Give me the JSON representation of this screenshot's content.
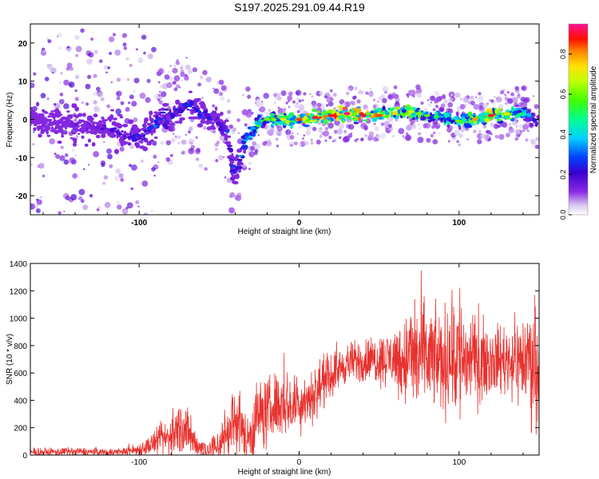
{
  "title": "S197.2025.291.09.44.R19",
  "colors": {
    "snr_line": "#e8322e",
    "axis": "#000000",
    "background": "#ffffff"
  },
  "chart_data": [
    {
      "type": "heatmap",
      "title": "S197.2025.291.09.44.R19",
      "xlabel": "Height of straight line (km)",
      "ylabel": "Frequency (Hz)",
      "xlim": [
        -168,
        150
      ],
      "ylim": [
        -25,
        25
      ],
      "xticks": [
        -100,
        0,
        100
      ],
      "yticks": [
        -20,
        -10,
        0,
        10,
        20
      ],
      "colorbar": {
        "label": "Normalized spectral amplitude",
        "range": [
          0,
          0.95
        ],
        "ticks": [
          0.0,
          0.2,
          0.4,
          0.6,
          0.8
        ]
      },
      "ridge": {
        "x": [
          -168,
          -150,
          -130,
          -115,
          -100,
          -85,
          -75,
          -68,
          -60,
          -52,
          -45,
          -41,
          -38,
          -35,
          -30,
          -25,
          -20,
          -10,
          0,
          10,
          20,
          30,
          40,
          50,
          60,
          70,
          80,
          90,
          100,
          110,
          120,
          130,
          140,
          148
        ],
        "y": [
          0,
          -1,
          -2,
          -3,
          -5,
          0,
          2,
          4,
          1,
          0,
          -3,
          -14,
          -12,
          -6,
          -4,
          -1,
          0,
          0,
          0,
          0.5,
          1,
          1.5,
          1,
          1,
          1.5,
          2,
          1,
          0.5,
          -0.5,
          0,
          1,
          1.5,
          2,
          -1
        ],
        "peak_amplitude": [
          0.1,
          0.15,
          0.2,
          0.25,
          0.3,
          0.35,
          0.35,
          0.3,
          0.3,
          0.25,
          0.3,
          0.35,
          0.35,
          0.45,
          0.5,
          0.55,
          0.6,
          0.7,
          0.85,
          0.9,
          0.9,
          0.95,
          0.9,
          0.85,
          0.75,
          0.7,
          0.6,
          0.55,
          0.6,
          0.8,
          0.9,
          0.7,
          0.5,
          0.3
        ]
      }
    },
    {
      "type": "line",
      "xlabel": "Height of straight line (km)",
      "ylabel": "SNR (10 * v/v)",
      "xlim": [
        -168,
        150
      ],
      "ylim": [
        0,
        1400
      ],
      "xticks": [
        -100,
        0,
        100
      ],
      "yticks": [
        0,
        200,
        400,
        600,
        800,
        1000,
        1200,
        1400
      ],
      "series": [
        {
          "name": "SNR",
          "envelope": {
            "x": [
              -168,
              -140,
              -120,
              -110,
              -100,
              -92,
              -85,
              -80,
              -76,
              -72,
              -68,
              -62,
              -55,
              -50,
              -45,
              -42,
              -38,
              -35,
              -32,
              -28,
              -25,
              -22,
              -18,
              -14,
              -10,
              -6,
              -2,
              2,
              6,
              10,
              14,
              20,
              25,
              30,
              40,
              50,
              60,
              65,
              70,
              75,
              80,
              85,
              90,
              95,
              98,
              100,
              105,
              110,
              120,
              130,
              140,
              145,
              150
            ],
            "mean": [
              20,
              25,
              20,
              25,
              40,
              80,
              110,
              140,
              190,
              210,
              120,
              60,
              40,
              80,
              170,
              200,
              280,
              150,
              120,
              250,
              310,
              300,
              330,
              380,
              380,
              360,
              370,
              400,
              420,
              450,
              520,
              580,
              630,
              670,
              690,
              700,
              710,
              690,
              720,
              720,
              720,
              700,
              680,
              720,
              760,
              740,
              700,
              690,
              700,
              700,
              690,
              700,
              680
            ],
            "noise": [
              15,
              15,
              15,
              15,
              25,
              40,
              60,
              80,
              100,
              110,
              70,
              40,
              40,
              70,
              110,
              130,
              130,
              90,
              80,
              150,
              110,
              130,
              120,
              120,
              120,
              110,
              110,
              110,
              100,
              100,
              90,
              80,
              70,
              70,
              80,
              90,
              110,
              160,
              200,
              230,
              200,
              170,
              180,
              230,
              300,
              280,
              200,
              150,
              120,
              130,
              170,
              220,
              200
            ]
          }
        }
      ]
    }
  ]
}
